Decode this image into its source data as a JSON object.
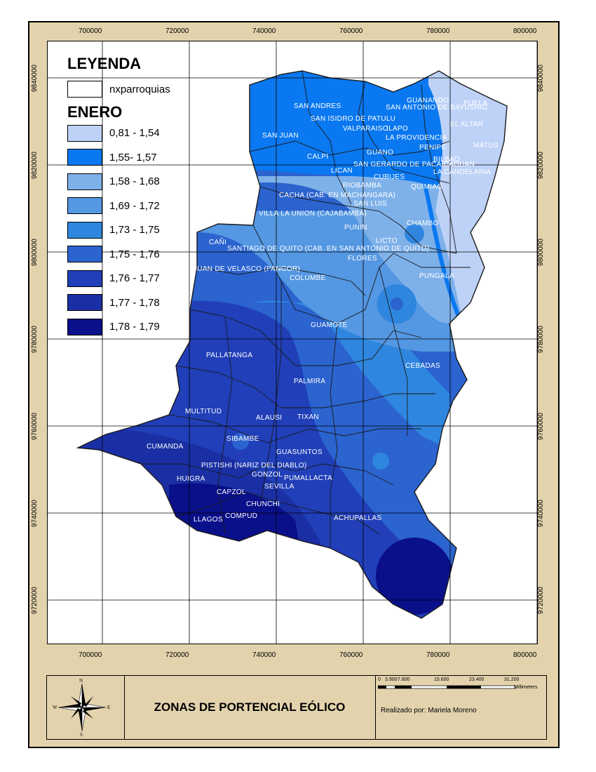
{
  "legend": {
    "title": "LEYENDA",
    "boundary_label": "nxparroquias",
    "variable_title": "ENERO",
    "classes": [
      {
        "label": "0,81 - 1,54",
        "color": "#bed2f7"
      },
      {
        "label": "1,55- 1,57",
        "color": "#0a78f0"
      },
      {
        "label": "1,58 - 1,68",
        "color": "#7fb1e9"
      },
      {
        "label": "1,69 - 1,72",
        "color": "#5497e2"
      },
      {
        "label": "1,73 - 1,75",
        "color": "#2f86de"
      },
      {
        "label": "1,75 - 1,76",
        "color": "#2b63cf"
      },
      {
        "label": "1,76 - 1,77",
        "color": "#203fb8"
      },
      {
        "label": "1,77 - 1,78",
        "color": "#1a2fa3"
      },
      {
        "label": "1,78 - 1,79",
        "color": "#0a0f8a"
      }
    ]
  },
  "axes": {
    "x_ticks": [
      "700000",
      "720000",
      "740000",
      "760000",
      "780000",
      "800000"
    ],
    "y_ticks": [
      "9840000",
      "9820000",
      "9800000",
      "9780000",
      "9760000",
      "9740000",
      "9720000"
    ]
  },
  "places": [
    "SAN ANDRES",
    "SAN ISIDRO DE PATULU",
    "VALPARAISO",
    "ILAPO",
    "SAN JUAN",
    "LA PROVIDENCIA",
    "CALPI",
    "GUANO",
    "LICAN",
    "SAN GERARDO DE PACAICAGUAN",
    "CUBIJES",
    "RIOBAMBA",
    "QUIMIAG",
    "CACHA (CAB. EN MACHANGARA)",
    "SAN LUIS",
    "VILLA LA UNION (CAJABAMBA)",
    "PUNIN",
    "CHAMBO",
    "LICTO",
    "CAÑI",
    "SANTIAGO DE QUITO (CAB. EN SAN ANTONIO DE QUITO)",
    "FLORES",
    "JUAN DE VELASCO (PANGOR)",
    "COLUMBE",
    "PUNGALA",
    "GUAMOTE",
    "PALLATANGA",
    "CEBADAS",
    "PALMIRA",
    "MULTITUD",
    "ALAUSI",
    "TIXAN",
    "CUMANDA",
    "SIBAMBE",
    "GUASUNTOS",
    "PISTISHI (NARIZ DEL DIABLO)",
    "GONZOL",
    "PUMALLACTA",
    "HUIGRA",
    "SEVILLA",
    "CAPZOL",
    "CHUNCHI",
    "LLAGOS",
    "COMPUD",
    "ACHUPALLAS",
    "PUELA",
    "EL ALTAR",
    "MATUS",
    "LA CANDELARIA",
    "GUANANDO",
    "PENIPE",
    "SAN ANTONIO DE BAYUSHIG",
    "BILBAO"
  ],
  "title": "ZONAS DE PORTENCIAL EÓLICO",
  "author": "Realizado por: Mariela Moreno",
  "scale": {
    "labels": [
      "0",
      "3.900",
      "7.800",
      "15.600",
      "23.400",
      "31.200"
    ],
    "unit": "Millimeters"
  },
  "compass": {
    "n": "N",
    "s": "S",
    "e": "E",
    "w": "W"
  }
}
